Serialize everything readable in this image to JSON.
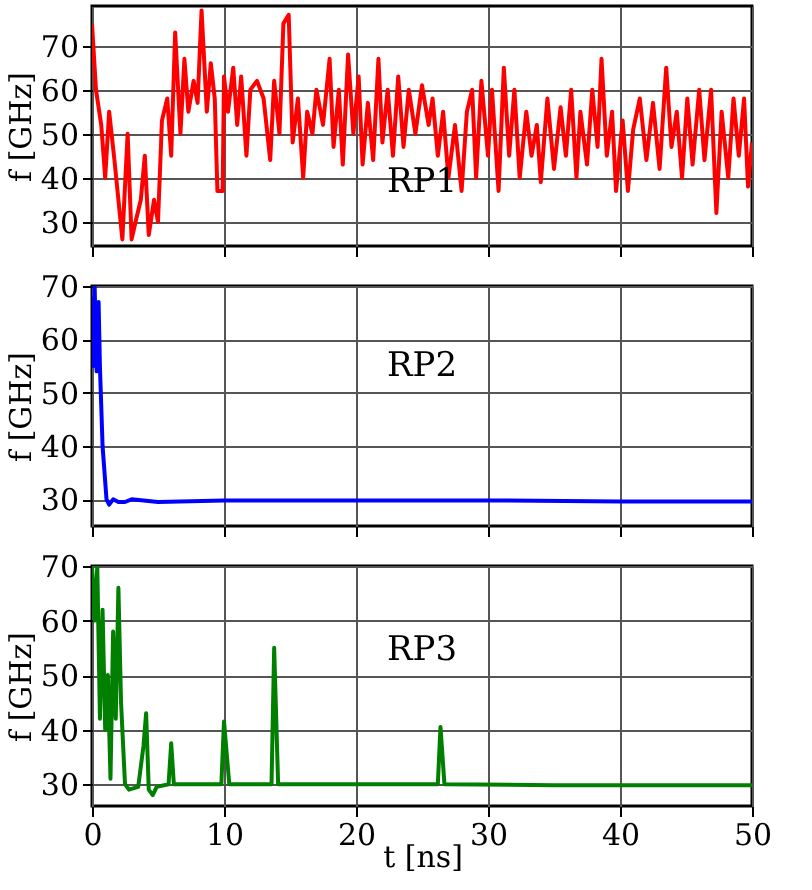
{
  "chart_data": [
    {
      "type": "line",
      "annotations": [
        "RP1"
      ],
      "ylabel": "f [GHz]",
      "xlim": [
        0,
        50
      ],
      "xticks": [
        0,
        10,
        20,
        30,
        40,
        50
      ],
      "ylim": [
        24.5,
        79
      ],
      "yticks": [
        30,
        40,
        50,
        60,
        70
      ],
      "grid": true,
      "tick_labels": "y",
      "line_style": "solid",
      "series": [
        {
          "color": "#ff0000",
          "x": [
            0,
            0.3,
            0.7,
            1,
            1.3,
            1.7,
            2,
            2.3,
            2.7,
            3,
            3.3,
            3.7,
            4,
            4.3,
            4.7,
            5,
            5.3,
            5.7,
            6,
            6.3,
            6.7,
            7,
            7.3,
            7.7,
            8,
            8.3,
            8.7,
            9,
            9.3,
            9.5,
            9.9,
            10,
            10.3,
            10.7,
            11,
            11.3,
            11.7,
            12,
            12.5,
            13,
            13.5,
            13.8,
            14.2,
            14.5,
            14.9,
            15.2,
            15.6,
            16,
            16.3,
            16.7,
            17,
            17.5,
            18,
            18.3,
            18.7,
            19,
            19.4,
            19.8,
            20.2,
            20.5,
            20.9,
            21.3,
            21.7,
            22,
            22.4,
            22.8,
            23.2,
            23.6,
            24,
            24.5,
            25,
            25.5,
            25.8,
            26.2,
            26.6,
            27,
            27.5,
            28,
            28.4,
            28.8,
            29.1,
            29.5,
            30,
            30.3,
            30.8,
            31.2,
            31.6,
            32,
            32.4,
            32.9,
            33.3,
            33.7,
            34,
            34.5,
            35,
            35.5,
            35.9,
            36.3,
            36.7,
            37,
            37.5,
            37.9,
            38.3,
            38.6,
            39,
            39.4,
            39.7,
            40.2,
            40.6,
            41,
            41.5,
            42,
            42.5,
            43,
            43.5,
            43.9,
            44.3,
            44.7,
            45.1,
            45.5,
            46,
            46.4,
            46.9,
            47.3,
            47.7,
            48.2,
            48.6,
            49,
            49.4,
            49.7,
            50
          ],
          "values": [
            75,
            60,
            52,
            40,
            55,
            44,
            35,
            26,
            50,
            26,
            30,
            35,
            45,
            27,
            35,
            30,
            53,
            58,
            45,
            73,
            50,
            67,
            55,
            62,
            57,
            78,
            55,
            66,
            58,
            37,
            37,
            63,
            55,
            65,
            52,
            63,
            45,
            60,
            62,
            58,
            44,
            62,
            50,
            75,
            77,
            48,
            58,
            40,
            55,
            50,
            60,
            52,
            67,
            47,
            60,
            43,
            68,
            50,
            63,
            43,
            57,
            44,
            67,
            48,
            60,
            45,
            63,
            47,
            60,
            50,
            61,
            52,
            58,
            45,
            55,
            40,
            52,
            37,
            55,
            60,
            40,
            62,
            45,
            60,
            37,
            65,
            45,
            60,
            40,
            55,
            45,
            52,
            39,
            58,
            42,
            56,
            45,
            60,
            40,
            55,
            43,
            60,
            47,
            67,
            45,
            55,
            37,
            53,
            37,
            51,
            58,
            44,
            57,
            42,
            65,
            47,
            55,
            40,
            58,
            43,
            60,
            44,
            60,
            32,
            55,
            40,
            58,
            45,
            58,
            38,
            48
          ]
        }
      ]
    },
    {
      "type": "line",
      "annotations": [
        "RP2"
      ],
      "ylabel": "f [GHz]",
      "xlim": [
        0,
        50
      ],
      "xticks": [
        0,
        10,
        20,
        30,
        40,
        50
      ],
      "ylim": [
        25,
        70
      ],
      "yticks": [
        30,
        40,
        50,
        60,
        70
      ],
      "grid": true,
      "tick_labels": "y",
      "line_style": "solid",
      "series": [
        {
          "color": "#0000ff",
          "x": [
            0,
            0.1,
            0.2,
            0.35,
            0.5,
            0.6,
            0.8,
            1.1,
            1.3,
            1.6,
            2,
            2.5,
            3,
            5,
            10,
            20,
            30,
            40,
            50
          ],
          "values": [
            68,
            55,
            70,
            54,
            67,
            55,
            40,
            30,
            29,
            30,
            29.5,
            29.5,
            30,
            29.5,
            29.8,
            29.8,
            29.8,
            29.6,
            29.6
          ]
        }
      ]
    },
    {
      "type": "line",
      "annotations": [
        "RP3"
      ],
      "xlabel": "t [ns]",
      "ylabel": "f [GHz]",
      "xlim": [
        0,
        50
      ],
      "xticks": [
        0,
        10,
        20,
        30,
        40,
        50
      ],
      "ylim": [
        26,
        70
      ],
      "yticks": [
        30,
        40,
        50,
        60,
        70
      ],
      "grid": true,
      "line_style": "solid",
      "series": [
        {
          "color": "#007f00",
          "x": [
            0,
            0.2,
            0.4,
            0.6,
            0.8,
            1,
            1.2,
            1.4,
            1.6,
            1.8,
            2,
            2.2,
            2.5,
            2.8,
            3.5,
            3.9,
            4.1,
            4.3,
            4.6,
            4.9,
            5.8,
            6,
            6.2,
            9.8,
            10,
            10.4,
            13.6,
            13.8,
            14.1,
            26.2,
            26.4,
            26.7,
            35,
            50
          ],
          "values": [
            70,
            60,
            70,
            42,
            62,
            40,
            50,
            31,
            58,
            42,
            66,
            45,
            30,
            29,
            29.5,
            37,
            43,
            29,
            28,
            29.5,
            30,
            37.5,
            30,
            30,
            41.5,
            30,
            30,
            55,
            30,
            30,
            40.5,
            30,
            29.8,
            29.8
          ]
        }
      ]
    }
  ]
}
